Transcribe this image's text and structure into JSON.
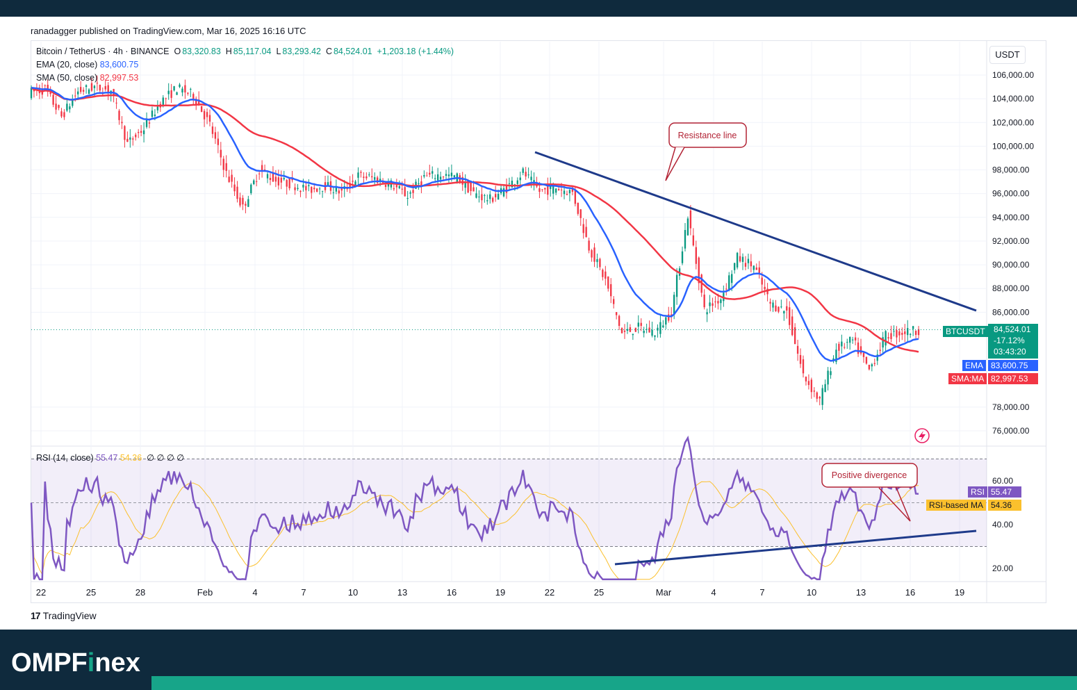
{
  "publisher": "ranadagger published on TradingView.com, Mar 16, 2025 16:16 UTC",
  "symbol_header": {
    "name": "Bitcoin / TetherUS · 4h · BINANCE",
    "open_label": "O",
    "open": "83,320.83",
    "high_label": "H",
    "high": "85,117.04",
    "low_label": "L",
    "low": "83,293.42",
    "close_label": "C",
    "close": "84,524.01",
    "change": "+1,203.18 (+1.44%)"
  },
  "indicators": {
    "ema_label": "EMA (20, close)",
    "ema_value": "83,600.75",
    "sma_label": "SMA (50, close)",
    "sma_value": "82,997.53",
    "rsi_label": "RSI (14, close)",
    "rsi_value": "55.47",
    "rsi_ma_value": "54.36",
    "rsi_extra": "∅ ∅ ∅ ∅"
  },
  "currency_button": "USDT",
  "price_tags": {
    "btc_label": "BTCUSDT",
    "btc_price": "84,524.01",
    "btc_change": "-17.12%",
    "btc_timer": "03:43:20",
    "ema_label": "EMA",
    "ema_price": "83,600.75",
    "sma_label": "SMA:MA",
    "sma_price": "82,997.53",
    "rsi_label": "RSI",
    "rsi_price": "55.47",
    "rsi_ma_label": "RSI-based MA",
    "rsi_ma_price": "54.36"
  },
  "annotations": {
    "resistance": "Resistance line",
    "divergence": "Positive divergence"
  },
  "colors": {
    "up": "#089981",
    "down": "#f23645",
    "ema": "#2962ff",
    "sma": "#f23645",
    "rsi": "#7e57c2",
    "rsi_ma": "#fbc02d",
    "trendline": "#1e3a8a",
    "annotation": "#b22234"
  },
  "footer": {
    "tradingview": "TradingView",
    "brand_pre": "OMPF",
    "brand_dot": "i",
    "brand_post": "nex"
  },
  "chart_data": [
    {
      "type": "candlestick",
      "title": "Bitcoin / TetherUS · 4h · BINANCE",
      "price_axis_ticks": [
        "106,000.00",
        "104,000.00",
        "102,000.00",
        "100,000.00",
        "98,000.00",
        "96,000.00",
        "94,000.00",
        "92,000.00",
        "90,000.00",
        "88,000.00",
        "86,000.00",
        "78,000.00",
        "76,000.00"
      ],
      "ylim": [
        75000,
        107500
      ],
      "x_ticks": [
        "22",
        "25",
        "28",
        "Feb",
        "4",
        "7",
        "10",
        "13",
        "16",
        "19",
        "22",
        "25",
        "Mar",
        "4",
        "7",
        "10",
        "13",
        "16",
        "19"
      ],
      "close_series": [
        {
          "date": "Jan 21",
          "value": 104500
        },
        {
          "date": "Jan 22",
          "value": 104800
        },
        {
          "date": "Jan 23",
          "value": 102500
        },
        {
          "date": "Jan 24",
          "value": 104600
        },
        {
          "date": "Jan 25",
          "value": 105000
        },
        {
          "date": "Jan 26",
          "value": 104700
        },
        {
          "date": "Jan 27",
          "value": 100200
        },
        {
          "date": "Jan 28",
          "value": 101500
        },
        {
          "date": "Jan 29",
          "value": 103700
        },
        {
          "date": "Jan 30",
          "value": 104900
        },
        {
          "date": "Jan 31",
          "value": 104300
        },
        {
          "date": "Feb 1",
          "value": 101800
        },
        {
          "date": "Feb 2",
          "value": 97700
        },
        {
          "date": "Feb 3",
          "value": 94800
        },
        {
          "date": "Feb 4",
          "value": 98000
        },
        {
          "date": "Feb 5",
          "value": 97100
        },
        {
          "date": "Feb 6",
          "value": 96800
        },
        {
          "date": "Feb 7",
          "value": 96300
        },
        {
          "date": "Feb 8",
          "value": 96700
        },
        {
          "date": "Feb 9",
          "value": 96100
        },
        {
          "date": "Feb 10",
          "value": 97500
        },
        {
          "date": "Feb 11",
          "value": 97300
        },
        {
          "date": "Feb 12",
          "value": 96800
        },
        {
          "date": "Feb 13",
          "value": 95800
        },
        {
          "date": "Feb 14",
          "value": 97400
        },
        {
          "date": "Feb 15",
          "value": 97600
        },
        {
          "date": "Feb 16",
          "value": 97400
        },
        {
          "date": "Feb 17",
          "value": 96000
        },
        {
          "date": "Feb 18",
          "value": 95500
        },
        {
          "date": "Feb 19",
          "value": 96500
        },
        {
          "date": "Feb 20",
          "value": 97800
        },
        {
          "date": "Feb 21",
          "value": 96200
        },
        {
          "date": "Feb 22",
          "value": 96500
        },
        {
          "date": "Feb 23",
          "value": 96100
        },
        {
          "date": "Feb 24",
          "value": 91500
        },
        {
          "date": "Feb 25",
          "value": 88700
        },
        {
          "date": "Feb 26",
          "value": 84200
        },
        {
          "date": "Feb 27",
          "value": 84700
        },
        {
          "date": "Feb 28",
          "value": 84300
        },
        {
          "date": "Mar 1",
          "value": 86000
        },
        {
          "date": "Mar 2",
          "value": 94200
        },
        {
          "date": "Mar 3",
          "value": 86200
        },
        {
          "date": "Mar 4",
          "value": 87200
        },
        {
          "date": "Mar 5",
          "value": 90600
        },
        {
          "date": "Mar 6",
          "value": 89900
        },
        {
          "date": "Mar 7",
          "value": 86700
        },
        {
          "date": "Mar 8",
          "value": 86100
        },
        {
          "date": "Mar 9",
          "value": 80700
        },
        {
          "date": "Mar 10",
          "value": 78500
        },
        {
          "date": "Mar 11",
          "value": 82900
        },
        {
          "date": "Mar 12",
          "value": 83600
        },
        {
          "date": "Mar 13",
          "value": 81100
        },
        {
          "date": "Mar 14",
          "value": 84000
        },
        {
          "date": "Mar 15",
          "value": 84300
        },
        {
          "date": "Mar 16",
          "value": 84524
        }
      ],
      "series": [
        {
          "name": "EMA (20, close)",
          "values_note": "tracks close",
          "last": 83600.75
        },
        {
          "name": "SMA (50, close)",
          "values_note": "smoother trend",
          "last": 82997.53
        }
      ],
      "annotations": [
        "Resistance line"
      ]
    },
    {
      "type": "line",
      "title": "RSI (14, close)",
      "axis_ticks": [
        "60.00",
        "40.00",
        "20.00"
      ],
      "ylim": [
        15,
        80
      ],
      "bands": [
        30,
        70
      ],
      "last": {
        "RSI": 55.47,
        "RSI-based MA": 54.36
      },
      "annotations": [
        "Positive divergence"
      ]
    }
  ]
}
